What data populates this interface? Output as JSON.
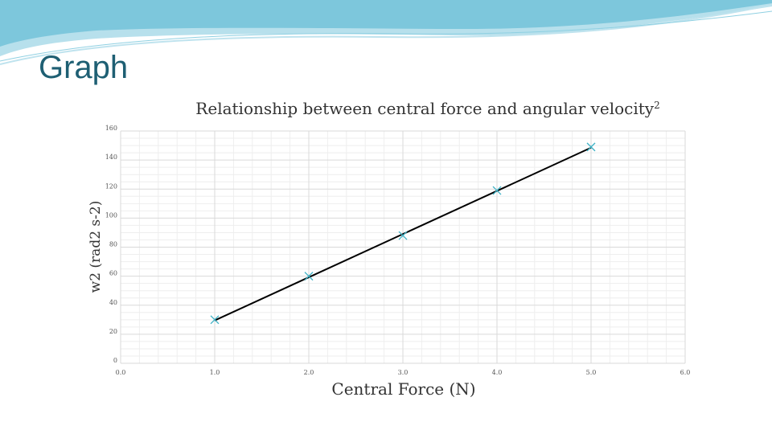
{
  "slide": {
    "title": "Graph"
  },
  "colors": {
    "title": "#1e5f73",
    "wave_dark": "#4fb3cf",
    "wave_light": "#bfe3ee",
    "marker": "#3fb2c6",
    "trendline": "#000000",
    "grid_major": "#d9d9d9",
    "grid_minor": "#eeeeee"
  },
  "chart_data": {
    "type": "scatter",
    "title": "Relationship between central force and angular velocity",
    "title_superscript": "2",
    "xlabel": "Central Force (N)",
    "ylabel": "w2 (rad2 s-2)",
    "xlim": [
      0,
      6
    ],
    "ylim": [
      0,
      160
    ],
    "x_ticks": [
      "0.0",
      "1.0",
      "2.0",
      "3.0",
      "4.0",
      "5.0",
      "6.0"
    ],
    "y_ticks": [
      "0",
      "20",
      "40",
      "60",
      "80",
      "100",
      "120",
      "140",
      "160"
    ],
    "grid": true,
    "marker": "x",
    "points": [
      {
        "x": 1.0,
        "y": 30
      },
      {
        "x": 2.0,
        "y": 60
      },
      {
        "x": 3.0,
        "y": 88
      },
      {
        "x": 4.0,
        "y": 119
      },
      {
        "x": 5.0,
        "y": 149
      }
    ],
    "trendline": {
      "x": [
        1.0,
        5.0
      ],
      "y": [
        29.5,
        148.5
      ]
    }
  }
}
